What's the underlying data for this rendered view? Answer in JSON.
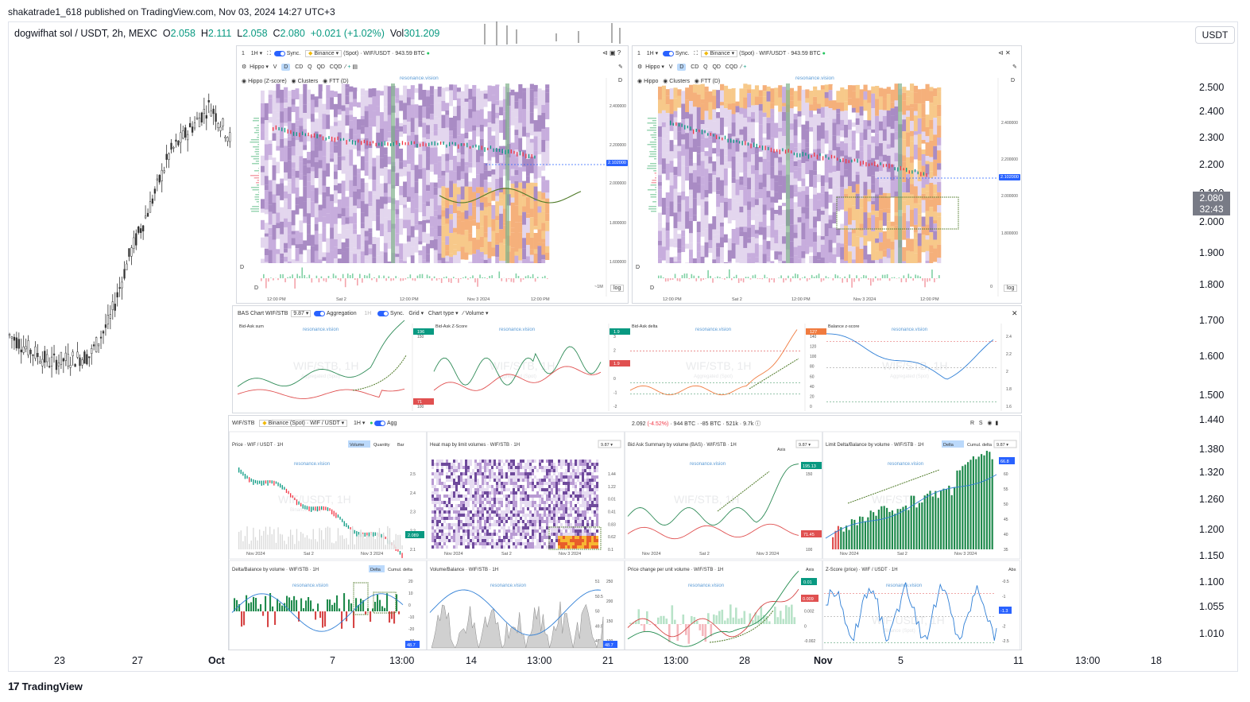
{
  "publisher": "shakatrade1_618 published on TradingView.com, Nov 03, 2024 14:27 UTC+3",
  "legend": {
    "symbol": "dogwifhat sol / USDT, 2h, MEXC",
    "o_label": "O",
    "o": "2.058",
    "h_label": "H",
    "h": "2.111",
    "l_label": "L",
    "l": "2.058",
    "c_label": "C",
    "c": "2.080",
    "change": "+0.021 (+1.02%)",
    "vol_label": "Vol",
    "vol": "301.209"
  },
  "currency_button": "USDT",
  "price_badge": {
    "price": "2.080",
    "countdown": "32:43"
  },
  "footer_brand": "TradingView",
  "colors": {
    "up": "#089981",
    "down": "#f23645",
    "accent": "#2962ff",
    "heat_purple": "#a98bc4",
    "heat_orange": "#f3a06a"
  },
  "chart_data": {
    "type": "line",
    "title": "dogwifhat sol / USDT, 2h, MEXC",
    "y_ticks": [
      "2.500",
      "2.400",
      "2.300",
      "2.200",
      "2.100",
      "2.000",
      "1.900",
      "1.800",
      "1.700",
      "1.600",
      "1.500",
      "1.440",
      "1.380",
      "1.320",
      "1.260",
      "1.200",
      "1.150",
      "1.100",
      "1.055",
      "1.010"
    ],
    "x_ticks": [
      "23",
      "27",
      "Oct",
      "7",
      "13:00",
      "14",
      "13:00",
      "21",
      "13:00",
      "28",
      "Nov",
      "5",
      "11",
      "13:00",
      "18"
    ],
    "ylim": [
      1.0,
      2.55
    ],
    "price_path": [
      {
        "t": "Sep 19",
        "p": 1.67
      },
      {
        "t": "Sep 20",
        "p": 1.62
      },
      {
        "t": "Sep 21",
        "p": 1.58
      },
      {
        "t": "Sep 22",
        "p": 1.59
      },
      {
        "t": "Sep 23",
        "p": 1.6
      },
      {
        "t": "Sep 24",
        "p": 1.72
      },
      {
        "t": "Sep 25",
        "p": 1.94
      },
      {
        "t": "Sep 26",
        "p": 2.1
      },
      {
        "t": "Sep 27",
        "p": 2.28
      },
      {
        "t": "Sep 28",
        "p": 2.36
      },
      {
        "t": "Sep 29",
        "p": 2.44
      },
      {
        "t": "Sep 30",
        "p": 2.33
      }
    ],
    "right_top_ticks": [
      "1H"
    ]
  },
  "overlay": {
    "top_left": {
      "timeframe": "1H",
      "sync": "Sync.",
      "exchange": "Binance",
      "pair": "(Spot) · WIF/USDT · 943.59 BTC",
      "toolbar": [
        "Hippo",
        "V",
        "D",
        "CD",
        "Q",
        "QD",
        "CQD"
      ],
      "indicators": [
        "Hippo (Z-score)",
        "Clusters",
        "FTT (D)"
      ],
      "watermark": "resonance.vision",
      "y_ticks": [
        "2.400000",
        "2.200000",
        "2.000000",
        "1.800000",
        "1.600000"
      ],
      "price_tag": "2.102000",
      "x_ticks": [
        "12:00 PM",
        "Sat 2",
        "12:00 PM",
        "Nov 3 2024",
        "12:00 PM"
      ],
      "log": "log",
      "d_label": "D",
      "d2": "D",
      "vol_label": "~1M"
    },
    "top_right": {
      "timeframe": "1H",
      "sync": "Sync.",
      "exchange": "Binance",
      "pair": "(Spot) · WIF/USDT · 943.59 BTC",
      "toolbar": [
        "Hippo",
        "V",
        "D",
        "CD",
        "Q",
        "QD",
        "CQD"
      ],
      "indicators": [
        "Hippo",
        "Clusters",
        "FTT (D)"
      ],
      "watermark": "resonance.vision",
      "y_ticks": [
        "2.400000",
        "2.200000",
        "2.000000",
        "1.800000"
      ],
      "price_tag": "2.102000",
      "x_ticks": [
        "12:00 PM",
        "Sat 2",
        "12:00 PM",
        "Nov 3 2024",
        "12:00 PM"
      ],
      "log": "log",
      "d_label": "D",
      "d2": "D",
      "vol_label": "0"
    },
    "bas": {
      "header": "BAS Chart  WIF/STB",
      "ratio": "9.87",
      "aggregation": "Aggregation",
      "tf": "1H",
      "sync": "Sync.",
      "grid": "Grid",
      "chart_type": "Chart type",
      "volume": "Volume",
      "panels": [
        {
          "title": "Bid-Ask sum",
          "wm": "WIF/STB, 1H",
          "sub": "Aggregated (Spot)",
          "ticks": [
            "150",
            "100"
          ],
          "tag_top": "196",
          "tag_bot": "71"
        },
        {
          "title": "Bid-Ask Z-Score",
          "wm": "WIF/STB, 1H",
          "sub": "Aggregated (Spot)",
          "ticks": [
            "3",
            "2",
            "1",
            "0",
            "-1",
            "-2"
          ],
          "tag_top": "1.9",
          "tag_bot": "1.9"
        },
        {
          "title": "Bid-Ask delta",
          "wm": "WIF/STB, 1H",
          "sub": "Aggregated (Spot)",
          "ticks": [
            "140",
            "120",
            "100",
            "80",
            "60",
            "40",
            "20",
            "0"
          ],
          "tag_top": "127"
        },
        {
          "title": "Balance z-score",
          "wm": "WIF/STB, 1H",
          "sub": "Aggregated (Spot)",
          "ticks": [
            "2.4",
            "2.2",
            "2",
            "1.8",
            "1.6"
          ]
        }
      ]
    },
    "grid": {
      "pair": "WIF/STB",
      "exchange": "Binance (Spot) · WIF / USDT",
      "tf": "1H",
      "agg": "Agg",
      "stats": "2.092 (-4.52%) · 944 BTC · -85 BTC · 521k · 9.7k",
      "stat_price": "2.092",
      "stat_change": "(-4.52%)",
      "icons": [
        "R",
        "S"
      ],
      "panels_row1": [
        {
          "title": "Price · WIF / USDT · 1H",
          "buttons": [
            "Volume",
            "Quantity",
            "Bar"
          ],
          "wm": "WIF/USDT, 1H",
          "sub": "Binance (Spot)",
          "ticks": [
            "2.5",
            "2.4",
            "2.3",
            "2.2",
            "2.1"
          ],
          "tag": "2.089",
          "x": [
            "Nov 2024",
            "Sat 2",
            "Nov 3 2024"
          ]
        },
        {
          "title": "Heat map by limit volumes · WIF/STB · 1H",
          "ratio": "9.87",
          "wm": "WIF/STB, 1H",
          "ticks": [
            "1.44",
            "1.22",
            "0.01",
            "0.41",
            "0.83",
            "0.62",
            "0.1"
          ],
          "x": [
            "Nov 2024",
            "Sat 2",
            "Nov 3 2024"
          ]
        },
        {
          "title": "Bid Ask Summary by volume (BAS) · WIF/STB · 1H",
          "axis": "Axis",
          "ratio": "9.87",
          "wm": "WIF/STB, 1H",
          "ticks": [
            "150",
            "100"
          ],
          "tag_top": "195.13",
          "tag_bot": "71.45",
          "x": [
            "Nov 2024",
            "Sat 2",
            "Nov 3 2024"
          ]
        },
        {
          "title": "Limit Delta/Balance by volume · WIF/STB · 1H",
          "buttons": [
            "Delta",
            "Cumul. delta"
          ],
          "ratio": "9.87",
          "wm": "WIF/STB, 1H",
          "ticks": [
            "60",
            "55",
            "50",
            "45",
            "40",
            "35"
          ],
          "tag": "66.8",
          "x": [
            "Nov 2024",
            "Sat 2",
            "Nov 3 2024"
          ]
        }
      ],
      "panels_row2": [
        {
          "title": "Delta/Balance by volume · WIF/STB · 1H",
          "buttons": [
            "Delta",
            "Cumul. delta"
          ],
          "ticks": [
            "20",
            "10",
            "0",
            "-10",
            "-20",
            "-30"
          ],
          "tag": "48.7"
        },
        {
          "title": "Volume/Balance · WIF/STB · 1H",
          "ticks": [
            "250",
            "200",
            "150",
            "100"
          ],
          "ticks2": [
            "51",
            "50.5",
            "50",
            "49.5",
            "49"
          ],
          "tag": "48.7"
        },
        {
          "title": "Price change per unit volume · WIF/STB · 1H",
          "axis": "Axis",
          "ticks": [
            "0.006",
            "0.004",
            "0.002",
            "0",
            "-0.002"
          ],
          "tag_top": "0.01",
          "tag_bot": "0.009"
        },
        {
          "title": "Z-Score (price) · WIF / USDT · 1H",
          "abs": "Abs",
          "wm": "WIF/USDT, 1H",
          "sub": "Binance (Spot)",
          "ticks": [
            "-0.5",
            "-1",
            "-1.5",
            "-2",
            "-2.5"
          ],
          "tag": "-1.3"
        }
      ]
    }
  }
}
